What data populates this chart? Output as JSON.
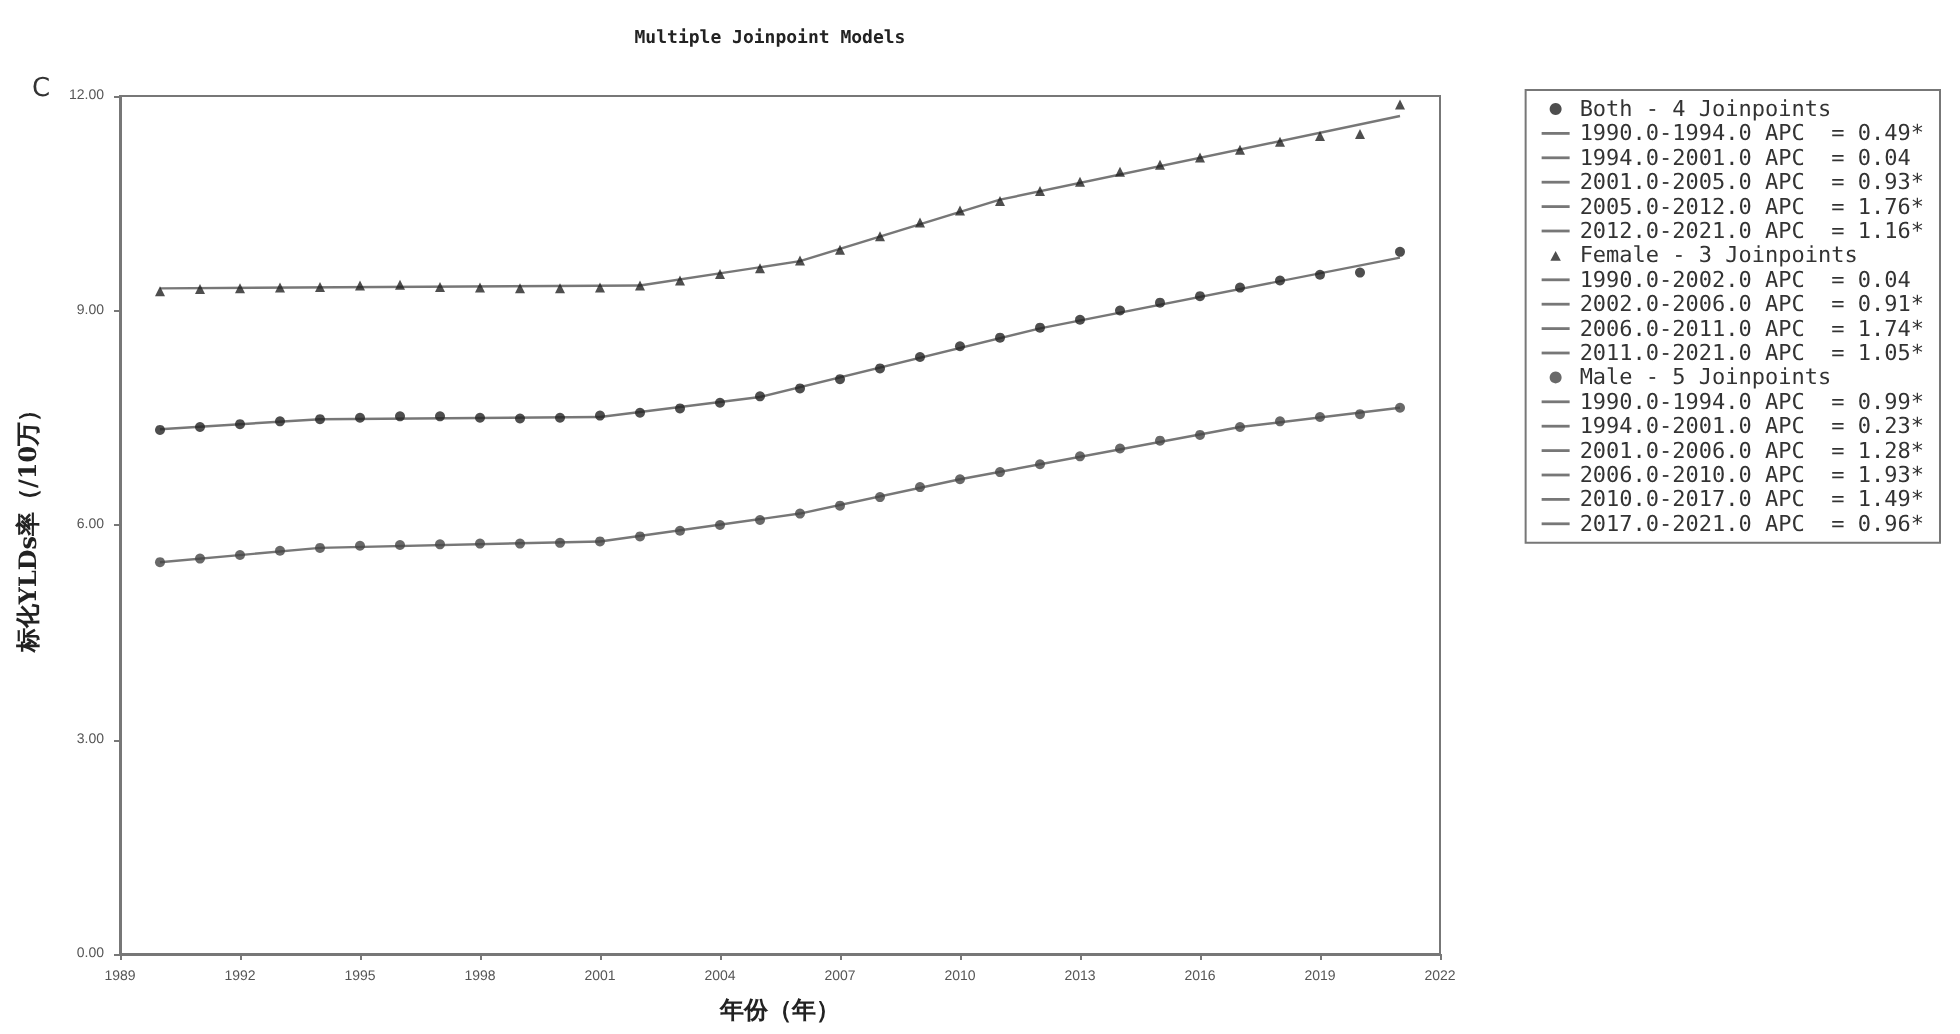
{
  "chart_data": {
    "type": "scatter",
    "title": "Multiple Joinpoint Models",
    "xlabel": "年份（年）",
    "ylabel": "标化YLDs率（/10万）",
    "annotations": [
      "C"
    ],
    "xlim": [
      1989,
      2022
    ],
    "xticks": [
      1989,
      1992,
      1995,
      1998,
      2001,
      2004,
      2007,
      2010,
      2013,
      2016,
      2019,
      2022
    ],
    "ylim": [
      0,
      12
    ],
    "yticks": [
      {
        "value": 0,
        "label": "0.00"
      },
      {
        "value": 3,
        "label": "3.00"
      },
      {
        "value": 6,
        "label": "6.00"
      },
      {
        "value": 9,
        "label": "9.00"
      },
      {
        "value": 12,
        "label": "12.00"
      }
    ],
    "grid": false,
    "legend": "right",
    "series": [
      {
        "name": "Both - 4 Joinpoints",
        "marker": "circle",
        "color": "#222222",
        "x": [
          1990,
          1991,
          1992,
          1993,
          1994,
          1995,
          1996,
          1997,
          1998,
          1999,
          2000,
          2001,
          2002,
          2003,
          2004,
          2005,
          2006,
          2007,
          2008,
          2009,
          2010,
          2011,
          2012,
          2013,
          2014,
          2015,
          2016,
          2017,
          2018,
          2019,
          2020,
          2021
        ],
        "values": [
          7.33,
          7.37,
          7.41,
          7.45,
          7.48,
          7.5,
          7.52,
          7.52,
          7.5,
          7.49,
          7.5,
          7.53,
          7.57,
          7.63,
          7.71,
          7.8,
          7.91,
          8.04,
          8.19,
          8.35,
          8.5,
          8.62,
          8.76,
          8.87,
          9.0,
          9.11,
          9.2,
          9.32,
          9.42,
          9.5,
          9.53,
          9.82
        ]
      },
      {
        "name": "1990.0-1994.0 APC  = 0.49*",
        "type": "line",
        "marker": "none",
        "color": "#777777",
        "x": [
          1990,
          1994
        ],
        "values": [
          7.34,
          7.48
        ]
      },
      {
        "name": "1994.0-2001.0 APC  = 0.04",
        "type": "line",
        "marker": "none",
        "color": "#777777",
        "x": [
          1994,
          2001
        ],
        "values": [
          7.48,
          7.51
        ]
      },
      {
        "name": "2001.0-2005.0 APC  = 0.93*",
        "type": "line",
        "marker": "none",
        "color": "#777777",
        "x": [
          2001,
          2005
        ],
        "values": [
          7.51,
          7.79
        ]
      },
      {
        "name": "2005.0-2012.0 APC  = 1.76*",
        "type": "line",
        "marker": "none",
        "color": "#777777",
        "x": [
          2005,
          2012
        ],
        "values": [
          7.79,
          8.75
        ]
      },
      {
        "name": "2012.0-2021.0 APC  = 1.16*",
        "type": "line",
        "marker": "none",
        "color": "#777777",
        "x": [
          2012,
          2021
        ],
        "values": [
          8.75,
          9.74
        ]
      },
      {
        "name": "Female - 3 Joinpoints",
        "marker": "triangle",
        "color": "#222222",
        "x": [
          1990,
          1991,
          1992,
          1993,
          1994,
          1995,
          1996,
          1997,
          1998,
          1999,
          2000,
          2001,
          2002,
          2003,
          2004,
          2005,
          2006,
          2007,
          2008,
          2009,
          2010,
          2011,
          2012,
          2013,
          2014,
          2015,
          2016,
          2017,
          2018,
          2019,
          2020,
          2021
        ],
        "values": [
          9.27,
          9.3,
          9.31,
          9.32,
          9.33,
          9.35,
          9.36,
          9.33,
          9.32,
          9.31,
          9.31,
          9.32,
          9.35,
          9.42,
          9.51,
          9.59,
          9.7,
          9.85,
          10.04,
          10.23,
          10.4,
          10.53,
          10.67,
          10.8,
          10.94,
          11.04,
          11.14,
          11.25,
          11.36,
          11.44,
          11.47,
          11.88
        ]
      },
      {
        "name": "1990.0-2002.0 APC  = 0.04",
        "type": "line",
        "marker": "none",
        "color": "#777777",
        "x": [
          1990,
          2002
        ],
        "values": [
          9.31,
          9.35
        ]
      },
      {
        "name": "2002.0-2006.0 APC  = 0.91*",
        "type": "line",
        "marker": "none",
        "color": "#777777",
        "x": [
          2002,
          2006
        ],
        "values": [
          9.35,
          9.69
        ]
      },
      {
        "name": "2006.0-2011.0 APC  = 1.74*",
        "type": "line",
        "marker": "none",
        "color": "#777777",
        "x": [
          2006,
          2011
        ],
        "values": [
          9.69,
          10.55
        ]
      },
      {
        "name": "2011.0-2021.0 APC  = 1.05*",
        "type": "line",
        "marker": "none",
        "color": "#777777",
        "x": [
          2011,
          2021
        ],
        "values": [
          10.55,
          11.72
        ]
      },
      {
        "name": "Male - 5 Joinpoints",
        "marker": "circle",
        "color": "#444444",
        "x": [
          1990,
          1991,
          1992,
          1993,
          1994,
          1995,
          1996,
          1997,
          1998,
          1999,
          2000,
          2001,
          2002,
          2003,
          2004,
          2005,
          2006,
          2007,
          2008,
          2009,
          2010,
          2011,
          2012,
          2013,
          2014,
          2015,
          2016,
          2017,
          2018,
          2019,
          2020,
          2021
        ],
        "values": [
          5.48,
          5.53,
          5.58,
          5.64,
          5.68,
          5.71,
          5.72,
          5.73,
          5.74,
          5.74,
          5.75,
          5.77,
          5.84,
          5.92,
          6.0,
          6.07,
          6.16,
          6.27,
          6.39,
          6.53,
          6.64,
          6.74,
          6.85,
          6.96,
          7.07,
          7.18,
          7.26,
          7.37,
          7.45,
          7.51,
          7.55,
          7.64
        ]
      },
      {
        "name": "1990.0-1994.0 APC  = 0.99*",
        "type": "line",
        "marker": "none",
        "color": "#777777",
        "x": [
          1990,
          1994
        ],
        "values": [
          5.48,
          5.68
        ]
      },
      {
        "name": "1994.0-2001.0 APC  = 0.23*",
        "type": "line",
        "marker": "none",
        "color": "#777777",
        "x": [
          1994,
          2001
        ],
        "values": [
          5.68,
          5.77
        ]
      },
      {
        "name": "2001.0-2006.0 APC  = 1.28*",
        "type": "line",
        "marker": "none",
        "color": "#777777",
        "x": [
          2001,
          2006
        ],
        "values": [
          5.77,
          6.16
        ]
      },
      {
        "name": "2006.0-2010.0 APC  = 1.93*",
        "type": "line",
        "marker": "none",
        "color": "#777777",
        "x": [
          2006,
          2010
        ],
        "values": [
          6.16,
          6.64
        ]
      },
      {
        "name": "2010.0-2017.0 APC  = 1.49*",
        "type": "line",
        "marker": "none",
        "color": "#777777",
        "x": [
          2010,
          2017
        ],
        "values": [
          6.64,
          7.37
        ]
      },
      {
        "name": "2017.0-2021.0 APC  = 0.96*",
        "type": "line",
        "marker": "none",
        "color": "#777777",
        "x": [
          2017,
          2021
        ],
        "values": [
          7.37,
          7.64
        ]
      }
    ]
  }
}
